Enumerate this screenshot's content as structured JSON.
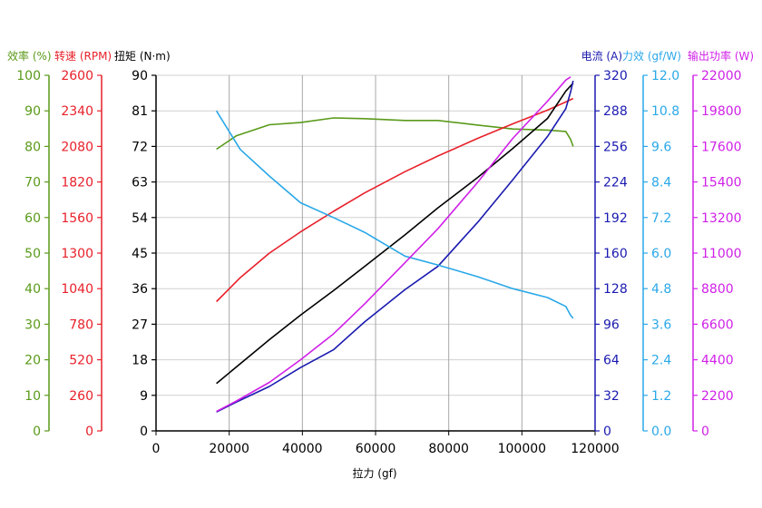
{
  "chart_data": {
    "type": "line",
    "xlabel": "拉力 (gf)",
    "xlim": [
      0,
      120000
    ],
    "xticks": [
      0,
      20000,
      40000,
      60000,
      80000,
      100000,
      120000
    ],
    "grid": true,
    "axes": [
      {
        "id": "eff",
        "label": "效率 (%)",
        "side": "left",
        "color": "#5a9a1a",
        "ylim": [
          0,
          100
        ],
        "ticks": [
          0,
          10,
          20,
          30,
          40,
          50,
          60,
          70,
          80,
          90,
          100
        ]
      },
      {
        "id": "rpm",
        "label": "转速 (RPM)",
        "side": "left",
        "color": "#e8202a",
        "ylim": [
          0,
          2600
        ],
        "ticks": [
          0,
          260,
          520,
          780,
          1040,
          1300,
          1560,
          1820,
          2080,
          2340,
          2600
        ]
      },
      {
        "id": "torque",
        "label": "扭矩 (N·m)",
        "side": "left",
        "color": "#000000",
        "ylim": [
          0,
          90
        ],
        "ticks": [
          0,
          9,
          18,
          27,
          36,
          45,
          54,
          63,
          72,
          81,
          90
        ]
      },
      {
        "id": "current",
        "label": "电流 (A)",
        "side": "right",
        "color": "#1a1ab0",
        "ylim": [
          0,
          320
        ],
        "ticks": [
          0,
          32,
          64,
          96,
          128,
          160,
          192,
          224,
          256,
          288,
          320
        ]
      },
      {
        "id": "force_eff",
        "label": "力效 (gf/W)",
        "side": "right",
        "color": "#2aa8e8",
        "ylim": [
          0,
          12
        ],
        "ticks": [
          "0.0",
          "1.2",
          "2.4",
          "3.6",
          "4.8",
          "6.0",
          "7.2",
          "8.4",
          "9.6",
          "10.8",
          "12.0"
        ]
      },
      {
        "id": "power",
        "label": "输出功率 (W)",
        "side": "right",
        "color": "#d020e8",
        "ylim": [
          0,
          22000
        ],
        "ticks": [
          0,
          2200,
          4400,
          6600,
          8800,
          11000,
          13200,
          15400,
          17600,
          19800,
          22000
        ]
      }
    ],
    "series": [
      {
        "axis": "eff",
        "color": "#5a9a1a",
        "x": [
          16500,
          22000,
          31000,
          39500,
          48500,
          57000,
          68000,
          77000,
          88000,
          97500,
          107000,
          112000,
          113300,
          114000
        ],
        "y": [
          79.2,
          83.0,
          86.1,
          86.7,
          88.0,
          87.8,
          87.3,
          87.3,
          86.0,
          84.9,
          84.6,
          84.2,
          82.0,
          80.0
        ]
      },
      {
        "axis": "rpm",
        "color": "#e8202a",
        "x": [
          16500,
          23000,
          31000,
          39500,
          48500,
          57000,
          68000,
          77000,
          88000,
          97500,
          107000,
          112000,
          114000
        ],
        "y": [
          945,
          1120,
          1300,
          1455,
          1605,
          1740,
          1895,
          2010,
          2140,
          2245,
          2345,
          2405,
          2430
        ]
      },
      {
        "axis": "torque",
        "color": "#000000",
        "x": [
          16500,
          31000,
          39500,
          48500,
          57000,
          68000,
          77000,
          88000,
          97500,
          107000,
          112000,
          114000
        ],
        "y": [
          12,
          23.1,
          29.3,
          35.5,
          41.6,
          49.6,
          56.4,
          64.2,
          71.5,
          79.1,
          86.0,
          88.0
        ]
      },
      {
        "axis": "current",
        "color": "#1a1ab0",
        "x": [
          16500,
          22000,
          31000,
          39500,
          48500,
          57000,
          68000,
          77000,
          88000,
          97500,
          107000,
          112000,
          113300,
          114000
        ],
        "y": [
          17,
          26,
          40,
          57,
          73,
          98,
          127,
          148,
          188,
          226,
          265,
          290,
          305,
          315
        ]
      },
      {
        "axis": "force_eff",
        "color": "#2aa8e8",
        "x": [
          16500,
          23000,
          31000,
          39500,
          48500,
          57000,
          68000,
          77000,
          88000,
          97500,
          107000,
          112000,
          113300,
          114000
        ],
        "y": [
          10.8,
          9.5,
          8.6,
          7.7,
          7.2,
          6.7,
          5.9,
          5.6,
          5.2,
          4.8,
          4.5,
          4.2,
          3.9,
          3.8
        ]
      },
      {
        "axis": "power",
        "color": "#d020e8",
        "x": [
          16500,
          22000,
          31000,
          39500,
          48500,
          57000,
          68000,
          77000,
          88000,
          97500,
          107000,
          112000,
          113300
        ],
        "y": [
          1200,
          1850,
          3000,
          4400,
          6000,
          7850,
          10400,
          12500,
          15400,
          18100,
          20400,
          21700,
          21900
        ]
      }
    ]
  }
}
